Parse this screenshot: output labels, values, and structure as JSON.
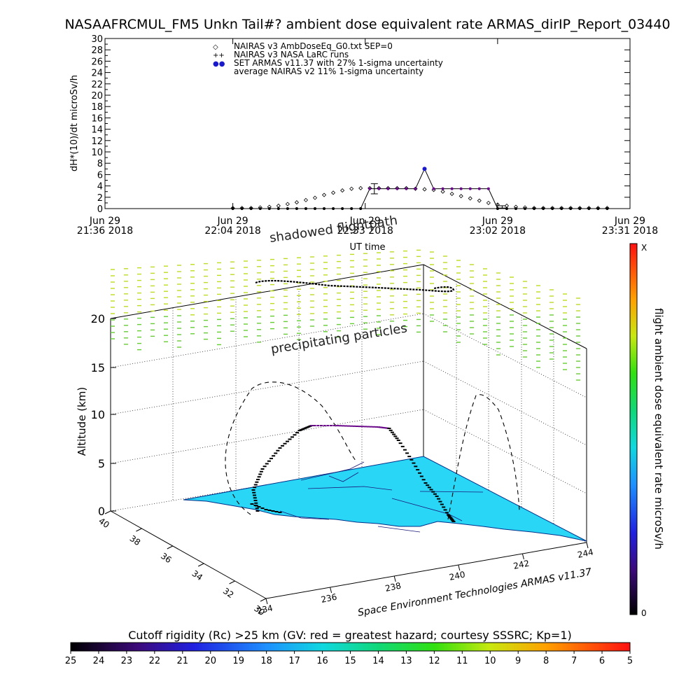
{
  "title": "NASAAFRCMUL_FM5 Unkn Tail#? ambient dose equivalent rate ARMAS_dirIP_Report_03440",
  "chart_data": [
    {
      "type": "scatter",
      "ylabel": "dH*(10)/dt microSv/h",
      "xlabel": "UT time",
      "ylim": [
        0,
        30
      ],
      "y_ticks": [
        "0",
        "2",
        "4",
        "6",
        "8",
        "10",
        "12",
        "14",
        "16",
        "18",
        "20",
        "22",
        "24",
        "26",
        "28",
        "30"
      ],
      "x_ticks": [
        {
          "date": "Jun 29",
          "time": "21:36 2018"
        },
        {
          "date": "Jun 29",
          "time": "22:04 2018"
        },
        {
          "date": "Jun 29",
          "time": "22:33 2018"
        },
        {
          "date": "Jun 29",
          "time": "23:02 2018"
        },
        {
          "date": "Jun 29",
          "time": "23:31 2018"
        }
      ],
      "legend": [
        {
          "symbol": "◇",
          "text": "NAIRAS v3 AmbDoseEq_G0.txt SEP=0",
          "color": "#000000"
        },
        {
          "symbol": "++",
          "text": "NAIRAS v3 NASA LaRC runs",
          "color": "#000000"
        },
        {
          "symbol": "●●",
          "text": "SET ARMAS v11.37 with 27% 1-sigma uncertainty",
          "color": "#1a1acc"
        },
        {
          "symbol": "",
          "text": "average NAIRAS v2 11% 1-sigma uncertainty",
          "color": "#000000"
        }
      ],
      "legend_position": "top-center",
      "series": [
        {
          "name": "NAIRAS v3 AmbDoseEq_G0.txt SEP=0",
          "marker": "diamond",
          "x": [
            "22:04",
            "22:06",
            "22:08",
            "22:10",
            "22:12",
            "22:14",
            "22:16",
            "22:18",
            "22:20",
            "22:22",
            "22:24",
            "22:26",
            "22:28",
            "22:30",
            "22:32",
            "22:34",
            "22:36",
            "22:38",
            "22:40",
            "22:42",
            "22:44",
            "22:46",
            "22:48",
            "22:50",
            "22:52",
            "22:54",
            "22:56",
            "22:58",
            "23:00",
            "23:02",
            "23:04",
            "23:06",
            "23:08",
            "23:10",
            "23:12",
            "23:14",
            "23:16",
            "23:18",
            "23:20",
            "23:22",
            "23:24",
            "23:26"
          ],
          "y": [
            0.1,
            0.1,
            0.1,
            0.2,
            0.3,
            0.5,
            0.8,
            1.1,
            1.5,
            1.9,
            2.4,
            2.8,
            3.2,
            3.5,
            3.6,
            3.6,
            3.6,
            3.6,
            3.6,
            3.6,
            3.5,
            3.4,
            3.3,
            3.0,
            2.6,
            2.2,
            1.8,
            1.4,
            1.0,
            0.7,
            0.5,
            0.3,
            0.2,
            0.1,
            0.1,
            0.1,
            0.1,
            0.1,
            0.1,
            0.1,
            0.1,
            0.1
          ]
        },
        {
          "name": "SET ARMAS v11.37 with 27% 1-sigma uncertainty",
          "marker": "dot",
          "x": [
            "22:04",
            "22:06",
            "22:08",
            "22:10",
            "22:12",
            "22:14",
            "22:16",
            "22:18",
            "22:20",
            "22:22",
            "22:24",
            "22:26",
            "22:28",
            "22:30",
            "22:32",
            "22:34",
            "22:36",
            "22:38",
            "22:40",
            "22:42",
            "22:44",
            "22:46",
            "22:48",
            "22:50",
            "22:52",
            "22:54",
            "22:56",
            "22:58",
            "23:00",
            "23:02",
            "23:04",
            "23:06",
            "23:08",
            "23:10",
            "23:12",
            "23:14",
            "23:16",
            "23:18",
            "23:20",
            "23:22",
            "23:24",
            "23:26"
          ],
          "y": [
            0,
            0,
            0,
            0,
            0,
            0,
            0,
            0,
            0,
            0,
            0,
            0,
            0,
            0,
            0,
            3.5,
            3.5,
            3.5,
            3.5,
            3.5,
            3.5,
            7.0,
            3.5,
            3.5,
            3.5,
            3.5,
            3.5,
            3.5,
            3.5,
            0,
            0,
            0,
            0,
            0,
            0,
            0,
            0,
            0,
            0,
            0,
            0,
            0
          ]
        }
      ],
      "error_bars": [
        {
          "x": "22:35",
          "y": 3.5,
          "low": 2.6,
          "high": 4.4
        },
        {
          "x": "23:03",
          "y": 0.3,
          "low": 0.1,
          "high": 0.5
        }
      ],
      "grid": false
    }
  ],
  "plot3d": {
    "ylabel": "Altitude (km)",
    "z_ticks": [
      "0",
      "5",
      "10",
      "15",
      "20"
    ],
    "lat_ticks": [
      "40",
      "38",
      "36",
      "34",
      "32",
      "30"
    ],
    "lon_ticks": [
      "234",
      "236",
      "238",
      "240",
      "242",
      "244"
    ],
    "annotations": {
      "shadowed": "shadowed flightpath",
      "precip": "precipitating particles"
    },
    "credit": "Space Environment Technologies ARMAS v11.37",
    "colorbar_label": "flight ambient dose equivalent rate microSv/h",
    "colorbar_top": "X",
    "colorbar_bottom": "0"
  },
  "rigidity": {
    "label": "Cutoff rigidity (Rc) >25 km (GV: red = greatest hazard; courtesy SSSRC; Kp=1)",
    "ticks": [
      "25",
      "24",
      "23",
      "22",
      "21",
      "20",
      "19",
      "18",
      "17",
      "16",
      "15",
      "14",
      "13",
      "12",
      "11",
      "10",
      "9",
      "8",
      "7",
      "6",
      "5"
    ]
  },
  "colors": {
    "armas": "#1a1acc",
    "armas_line": "#6a0a8a",
    "land": "#29d6f6",
    "precip": "#66cc33",
    "precip_high": "#bbdd22"
  }
}
